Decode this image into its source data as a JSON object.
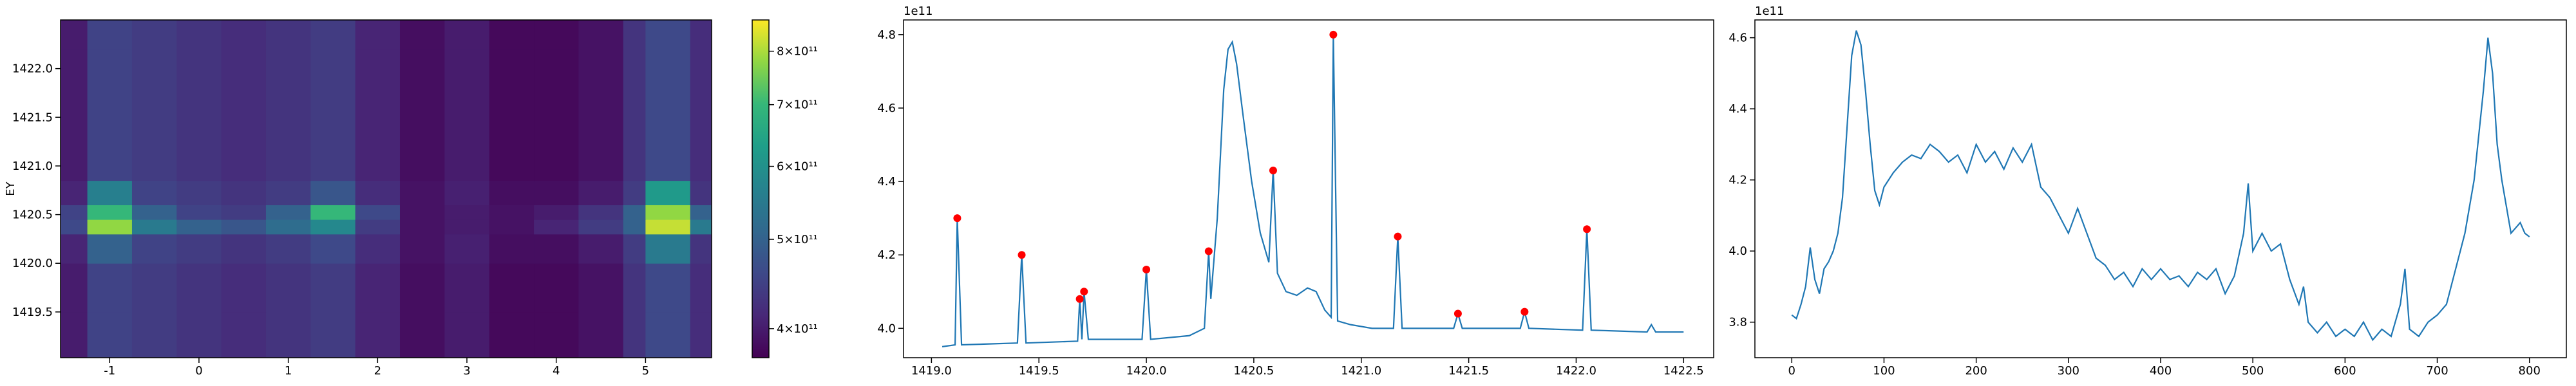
{
  "chart_data": [
    {
      "type": "heatmap",
      "ylabel": "EY",
      "colormap": "viridis",
      "xlim": [
        -1.55,
        5.74
      ],
      "ylim": [
        1419.03,
        1422.5
      ],
      "xticks": [
        -1,
        0,
        1,
        2,
        3,
        4,
        5
      ],
      "yticks": [
        1419.5,
        {
          "value": 1420,
          "label": "1420.0"
        },
        1420.5,
        {
          "value": 1421,
          "label": "1421.0"
        },
        1421.5,
        {
          "value": 1422,
          "label": "1422.0"
        }
      ],
      "xbins": [
        -1.55,
        -1.25,
        -0.75,
        -0.25,
        0.25,
        0.75,
        1.25,
        1.75,
        2.25,
        2.75,
        3.25,
        3.75,
        4.25,
        4.75,
        5.0,
        5.5,
        5.74
      ],
      "ybins": [
        1419.03,
        1419.5,
        1420.0,
        1420.3,
        1420.45,
        1420.6,
        1420.85,
        1421.2,
        1421.7,
        1422.2,
        1422.5
      ],
      "z": [
        [
          400000000000.0,
          450000000000.0,
          440000000000.0,
          430000000000.0,
          420000000000.0,
          430000000000.0,
          440000000000.0,
          410000000000.0,
          385000000000.0,
          400000000000.0,
          380000000000.0,
          380000000000.0,
          390000000000.0,
          430000000000.0,
          460000000000.0,
          420000000000.0
        ],
        [
          400000000000.0,
          450000000000.0,
          440000000000.0,
          430000000000.0,
          420000000000.0,
          430000000000.0,
          440000000000.0,
          410000000000.0,
          385000000000.0,
          400000000000.0,
          380000000000.0,
          380000000000.0,
          390000000000.0,
          430000000000.0,
          460000000000.0,
          420000000000.0
        ],
        [
          410000000000.0,
          500000000000.0,
          450000000000.0,
          440000000000.0,
          430000000000.0,
          440000000000.0,
          460000000000.0,
          420000000000.0,
          390000000000.0,
          405000000000.0,
          385000000000.0,
          385000000000.0,
          400000000000.0,
          440000000000.0,
          550000000000.0,
          430000000000.0
        ],
        [
          460000000000.0,
          780000000000.0,
          550000000000.0,
          500000000000.0,
          480000000000.0,
          520000000000.0,
          580000000000.0,
          440000000000.0,
          390000000000.0,
          400000000000.0,
          390000000000.0,
          410000000000.0,
          440000000000.0,
          500000000000.0,
          820000000000.0,
          550000000000.0
        ],
        [
          450000000000.0,
          700000000000.0,
          500000000000.0,
          450000000000.0,
          440000000000.0,
          500000000000.0,
          700000000000.0,
          460000000000.0,
          390000000000.0,
          400000000000.0,
          390000000000.0,
          400000000000.0,
          430000000000.0,
          500000000000.0,
          780000000000.0,
          500000000000.0
        ],
        [
          410000000000.0,
          560000000000.0,
          450000000000.0,
          440000000000.0,
          430000000000.0,
          440000000000.0,
          480000000000.0,
          420000000000.0,
          390000000000.0,
          405000000000.0,
          385000000000.0,
          385000000000.0,
          400000000000.0,
          440000000000.0,
          620000000000.0,
          430000000000.0
        ],
        [
          400000000000.0,
          450000000000.0,
          440000000000.0,
          430000000000.0,
          420000000000.0,
          430000000000.0,
          440000000000.0,
          410000000000.0,
          385000000000.0,
          400000000000.0,
          380000000000.0,
          380000000000.0,
          390000000000.0,
          430000000000.0,
          460000000000.0,
          420000000000.0
        ],
        [
          400000000000.0,
          450000000000.0,
          440000000000.0,
          430000000000.0,
          420000000000.0,
          430000000000.0,
          440000000000.0,
          410000000000.0,
          385000000000.0,
          400000000000.0,
          380000000000.0,
          380000000000.0,
          390000000000.0,
          430000000000.0,
          460000000000.0,
          420000000000.0
        ],
        [
          400000000000.0,
          450000000000.0,
          440000000000.0,
          430000000000.0,
          420000000000.0,
          430000000000.0,
          440000000000.0,
          410000000000.0,
          385000000000.0,
          400000000000.0,
          380000000000.0,
          380000000000.0,
          390000000000.0,
          430000000000.0,
          460000000000.0,
          420000000000.0
        ],
        [
          400000000000.0,
          450000000000.0,
          440000000000.0,
          430000000000.0,
          420000000000.0,
          430000000000.0,
          440000000000.0,
          410000000000.0,
          385000000000.0,
          400000000000.0,
          380000000000.0,
          380000000000.0,
          390000000000.0,
          430000000000.0,
          460000000000.0,
          420000000000.0
        ]
      ],
      "clim": [
        372000000000.0,
        865000000000.0
      ],
      "clog": true,
      "cticks": [
        {
          "value": 400000000000.0,
          "label": "4×10¹¹"
        },
        {
          "value": 500000000000.0,
          "label": "5×10¹¹"
        },
        {
          "value": 600000000000.0,
          "label": "6×10¹¹"
        },
        {
          "value": 700000000000.0,
          "label": "7×10¹¹"
        },
        {
          "value": 800000000000.0,
          "label": "8×10¹¹"
        }
      ]
    },
    {
      "type": "line",
      "offset_text": "1e11",
      "color": "#1f77b4",
      "xlim": [
        1418.87,
        1422.64
      ],
      "ylim": [
        3.92,
        4.84
      ],
      "xticks": [
        {
          "value": 1419,
          "label": "1419.0"
        },
        1419.5,
        {
          "value": 1420,
          "label": "1420.0"
        },
        1420.5,
        {
          "value": 1421,
          "label": "1421.0"
        },
        1421.5,
        {
          "value": 1422,
          "label": "1422.0"
        },
        1422.5
      ],
      "yticks": [
        {
          "value": 4,
          "label": "4.0"
        },
        4.2,
        4.4,
        4.6,
        4.8
      ],
      "x": [
        1419.05,
        1419.11,
        1419.12,
        1419.14,
        1419.4,
        1419.42,
        1419.44,
        1419.68,
        1419.69,
        1419.7,
        1419.71,
        1419.73,
        1419.98,
        1420.0,
        1420.02,
        1420.2,
        1420.27,
        1420.29,
        1420.3,
        1420.33,
        1420.36,
        1420.38,
        1420.4,
        1420.42,
        1420.45,
        1420.49,
        1420.53,
        1420.57,
        1420.59,
        1420.61,
        1420.65,
        1420.7,
        1420.75,
        1420.79,
        1420.83,
        1420.86,
        1420.87,
        1420.89,
        1420.95,
        1421.05,
        1421.15,
        1421.17,
        1421.19,
        1421.43,
        1421.45,
        1421.47,
        1421.74,
        1421.76,
        1421.78,
        1422.03,
        1422.05,
        1422.07,
        1422.33,
        1422.35,
        1422.37,
        1422.5
      ],
      "values": [
        3.95,
        3.955,
        4.3,
        3.955,
        3.96,
        4.2,
        3.96,
        3.965,
        4.08,
        3.97,
        4.1,
        3.97,
        3.97,
        4.16,
        3.97,
        3.98,
        4.0,
        4.21,
        4.08,
        4.3,
        4.65,
        4.76,
        4.78,
        4.72,
        4.58,
        4.4,
        4.26,
        4.18,
        4.43,
        4.15,
        4.1,
        4.09,
        4.11,
        4.1,
        4.05,
        4.03,
        4.8,
        4.02,
        4.01,
        4.0,
        4.0,
        4.25,
        4.0,
        4.0,
        4.04,
        4.0,
        4.0,
        4.045,
        4.0,
        3.995,
        4.27,
        3.995,
        3.99,
        4.01,
        3.99,
        3.99
      ],
      "markers": {
        "color": "#ff0000",
        "x": [
          1419.12,
          1419.42,
          1419.69,
          1419.71,
          1420.0,
          1420.29,
          1420.59,
          1420.87,
          1421.17,
          1421.45,
          1421.76,
          1422.05
        ],
        "values": [
          4.3,
          4.2,
          4.08,
          4.1,
          4.16,
          4.21,
          4.43,
          4.8,
          4.25,
          4.04,
          4.045,
          4.27
        ]
      }
    },
    {
      "type": "line",
      "offset_text": "1e11",
      "color": "#1f77b4",
      "xlim": [
        -40,
        840
      ],
      "ylim": [
        3.7,
        4.65
      ],
      "xticks": [
        0,
        100,
        200,
        300,
        400,
        500,
        600,
        700,
        800
      ],
      "yticks": [
        3.8,
        {
          "value": 4,
          "label": "4.0"
        },
        4.2,
        4.4,
        4.6
      ],
      "x": [
        0,
        5,
        10,
        15,
        20,
        25,
        30,
        35,
        40,
        45,
        50,
        55,
        60,
        65,
        70,
        75,
        80,
        85,
        90,
        95,
        100,
        110,
        120,
        130,
        140,
        150,
        160,
        170,
        180,
        190,
        200,
        210,
        220,
        230,
        240,
        250,
        260,
        270,
        280,
        290,
        300,
        310,
        320,
        330,
        340,
        350,
        360,
        370,
        380,
        390,
        400,
        410,
        420,
        430,
        440,
        450,
        460,
        470,
        480,
        490,
        495,
        500,
        510,
        520,
        530,
        540,
        550,
        555,
        560,
        570,
        580,
        590,
        600,
        610,
        620,
        630,
        640,
        650,
        660,
        665,
        670,
        680,
        690,
        700,
        710,
        720,
        730,
        740,
        750,
        755,
        760,
        765,
        770,
        780,
        790,
        795,
        800
      ],
      "values": [
        3.82,
        3.81,
        3.85,
        3.9,
        4.01,
        3.92,
        3.88,
        3.95,
        3.97,
        4.0,
        4.05,
        4.15,
        4.35,
        4.55,
        4.62,
        4.58,
        4.45,
        4.3,
        4.17,
        4.13,
        4.18,
        4.22,
        4.25,
        4.27,
        4.26,
        4.3,
        4.28,
        4.25,
        4.27,
        4.22,
        4.3,
        4.25,
        4.28,
        4.23,
        4.29,
        4.25,
        4.3,
        4.18,
        4.15,
        4.1,
        4.05,
        4.12,
        4.05,
        3.98,
        3.96,
        3.92,
        3.94,
        3.9,
        3.95,
        3.92,
        3.95,
        3.92,
        3.93,
        3.9,
        3.94,
        3.92,
        3.95,
        3.88,
        3.93,
        4.05,
        4.19,
        4.0,
        4.05,
        4.0,
        4.02,
        3.92,
        3.85,
        3.9,
        3.8,
        3.77,
        3.8,
        3.76,
        3.78,
        3.76,
        3.8,
        3.75,
        3.78,
        3.76,
        3.85,
        3.95,
        3.78,
        3.76,
        3.8,
        3.82,
        3.85,
        3.95,
        4.05,
        4.2,
        4.45,
        4.6,
        4.5,
        4.3,
        4.2,
        4.05,
        4.08,
        4.05,
        4.04
      ]
    }
  ]
}
